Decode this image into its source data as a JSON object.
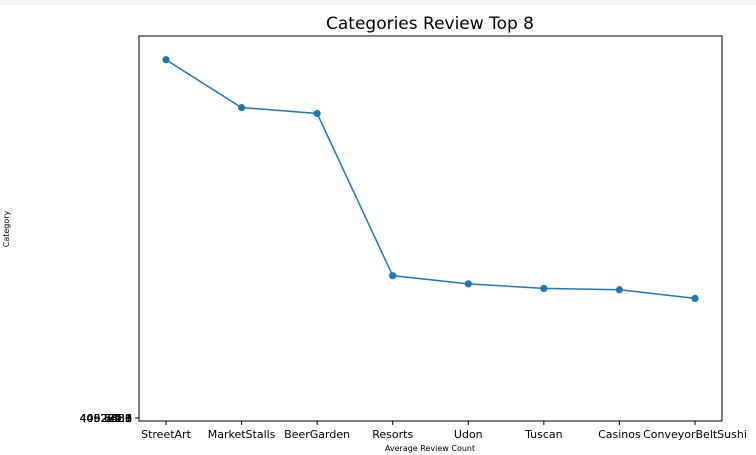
{
  "chart_data": {
    "type": "line",
    "title": "Categories Review Top 8",
    "xlabel": "Average Review Count",
    "ylabel": "Category",
    "categories": [
      "StreetArt",
      "MarketStalls",
      "BeerGarden",
      "Resorts",
      "Udon",
      "Tuscan",
      "Casinos",
      "ConveyorBeltSushi"
    ],
    "values": [
      470.3,
      430.5,
      425.6,
      290.8,
      284.0,
      280.2,
      279.1,
      271.9
    ],
    "ylim": [
      170,
      490
    ],
    "y_tick_labels_overlapping": [
      "446.7438",
      "409.3586",
      "405.6353",
      "290.6",
      "284.1",
      "280.3",
      "279.1",
      "271.9"
    ],
    "grid": false,
    "series_color": "#1f77b4"
  }
}
